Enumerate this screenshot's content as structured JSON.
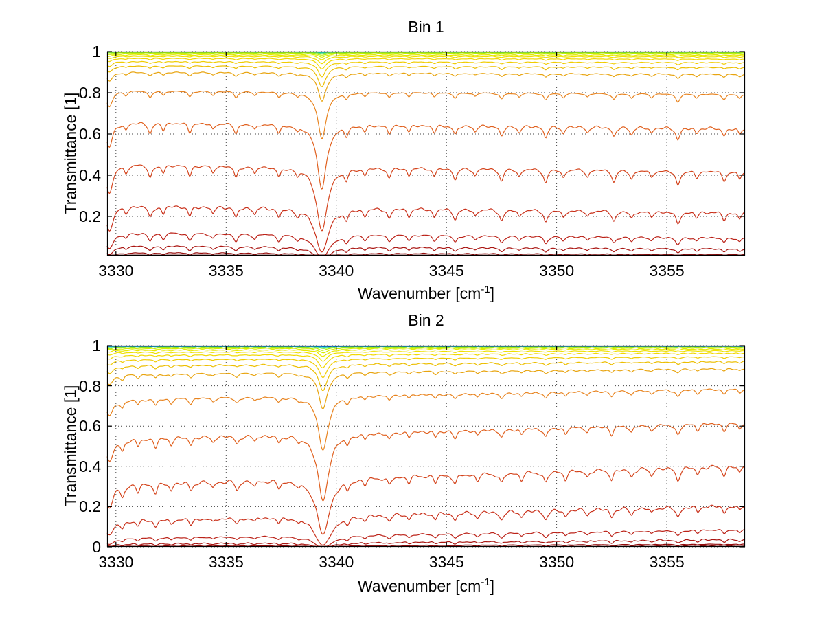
{
  "figure": {
    "background": "#ffffff",
    "kind": "matlab-style stacked spectra figure"
  },
  "chart_data": [
    {
      "type": "line",
      "title": "Bin 1",
      "xlabel": "Wavenumber [cm⁻¹]",
      "xlabel_parts": {
        "pre": "Wavenumber [cm",
        "sup": "-1",
        "post": "]"
      },
      "ylabel": "Transmittance [1]",
      "xlim": [
        3329.6,
        3358.55
      ],
      "ylim": [
        0.01,
        1.0
      ],
      "x_ticks": [
        3330,
        3335,
        3340,
        3345,
        3350,
        3355
      ],
      "x_tick_labels": [
        "3330",
        "3335",
        "3340",
        "3345",
        "3350",
        "3355"
      ],
      "y_ticks": [
        1,
        0.8,
        0.6,
        0.4,
        0.2
      ],
      "y_tick_labels": [
        "1",
        "0.8",
        "0.6",
        "0.4",
        "0.2"
      ],
      "grid": "dotted",
      "legend": "none",
      "x_step": 0.035,
      "draw_order": "asc",
      "model": "T_n(x) = exp(-k_n * A(x)); A(x) = continuum + sum of Lorentzian lines s*w^2/((x-p)^2+w^2)",
      "continuum": {
        "base": 0.105,
        "slope_per_cm": 0.0004,
        "x0": 3330
      },
      "strong_line_cm1": 3339.35,
      "lines_pos_strength_width": [
        [
          3329.7,
          0.05,
          0.18
        ],
        [
          3330.45,
          0.012,
          0.09
        ],
        [
          3331.55,
          0.02,
          0.1
        ],
        [
          3332.15,
          0.013,
          0.09
        ],
        [
          3333.35,
          0.017,
          0.1
        ],
        [
          3334.4,
          0.012,
          0.09
        ],
        [
          3335.45,
          0.019,
          0.1
        ],
        [
          3336.3,
          0.012,
          0.09
        ],
        [
          3337.4,
          0.016,
          0.1
        ],
        [
          3338.25,
          0.011,
          0.09
        ],
        [
          3339.35,
          0.165,
          0.22
        ],
        [
          3340.45,
          0.018,
          0.1
        ],
        [
          3341.3,
          0.011,
          0.09
        ],
        [
          3342.4,
          0.016,
          0.1
        ],
        [
          3343.3,
          0.012,
          0.09
        ],
        [
          3344.45,
          0.013,
          0.09
        ],
        [
          3345.4,
          0.018,
          0.1
        ],
        [
          3346.3,
          0.011,
          0.09
        ],
        [
          3347.5,
          0.02,
          0.1
        ],
        [
          3348.3,
          0.012,
          0.09
        ],
        [
          3349.5,
          0.022,
          0.1
        ],
        [
          3350.3,
          0.013,
          0.09
        ],
        [
          3351.4,
          0.011,
          0.09
        ],
        [
          3352.6,
          0.019,
          0.1
        ],
        [
          3353.4,
          0.014,
          0.09
        ],
        [
          3354.3,
          0.011,
          0.09
        ],
        [
          3355.5,
          0.024,
          0.11
        ],
        [
          3356.35,
          0.011,
          0.09
        ],
        [
          3357.6,
          0.015,
          0.1
        ],
        [
          3358.3,
          0.012,
          0.09
        ]
      ],
      "series_k": [
        0.004,
        0.008,
        0.015,
        0.025,
        0.04,
        0.065,
        0.1,
        0.15,
        0.22,
        0.32,
        0.47,
        0.68,
        1.0,
        2.0,
        4.0,
        7.5,
        13,
        20,
        27,
        35,
        44,
        55
      ],
      "series_colors": [
        "#000089",
        "#0038ff",
        "#00b4e6",
        "#2fd8a7",
        "#7ee82f",
        "#b4f000",
        "#d8ee00",
        "#e8e800",
        "#efe000",
        "#f1d800",
        "#f0cc00",
        "#ecbe00",
        "#e8a40f",
        "#e88420",
        "#e0601e",
        "#d4441c",
        "#c9301a",
        "#bb2218",
        "#aa1612",
        "#960c0c",
        "#800606",
        "#690000"
      ],
      "noise": {
        "mult": 0.022,
        "add": 0.002
      }
    },
    {
      "type": "line",
      "title": "Bin 2",
      "xlabel": "Wavenumber [cm⁻¹]",
      "xlabel_parts": {
        "pre": "Wavenumber [cm",
        "sup": "-1",
        "post": "]"
      },
      "ylabel": "Transmittance [1]",
      "xlim": [
        3329.6,
        3358.55
      ],
      "ylim": [
        0.0,
        1.0
      ],
      "x_ticks": [
        3330,
        3335,
        3340,
        3345,
        3350,
        3355
      ],
      "x_tick_labels": [
        "3330",
        "3335",
        "3340",
        "3345",
        "3350",
        "3355"
      ],
      "y_ticks": [
        1,
        0.8,
        0.6,
        0.4,
        0.2,
        0
      ],
      "y_tick_labels": [
        "1",
        "0.8",
        "0.6",
        "0.4",
        "0.2",
        "0"
      ],
      "grid": "dotted",
      "legend": "none",
      "x_step": 0.035,
      "draw_order": "desc",
      "model": "T_n(x) = exp(-k_n * A(x)); A(x) = continuum + sum of Lorentzian lines s*w^2/((x-p)^2+w^2)",
      "continuum": {
        "base": 0.155,
        "slope_per_cm": -0.0012,
        "x0": 3330
      },
      "strong_line_cm1": 3339.4,
      "lines_pos_strength_width": [
        [
          3329.7,
          0.06,
          0.2
        ],
        [
          3330.3,
          0.025,
          0.1
        ],
        [
          3331.0,
          0.018,
          0.09
        ],
        [
          3331.8,
          0.022,
          0.1
        ],
        [
          3332.5,
          0.016,
          0.09
        ],
        [
          3333.4,
          0.018,
          0.1
        ],
        [
          3334.4,
          0.013,
          0.09
        ],
        [
          3335.5,
          0.019,
          0.1
        ],
        [
          3336.3,
          0.012,
          0.09
        ],
        [
          3337.4,
          0.016,
          0.1
        ],
        [
          3338.3,
          0.012,
          0.09
        ],
        [
          3339.4,
          0.225,
          0.24
        ],
        [
          3340.5,
          0.019,
          0.1
        ],
        [
          3341.3,
          0.012,
          0.09
        ],
        [
          3342.4,
          0.016,
          0.1
        ],
        [
          3343.3,
          0.012,
          0.09
        ],
        [
          3344.5,
          0.014,
          0.09
        ],
        [
          3345.4,
          0.018,
          0.1
        ],
        [
          3346.4,
          0.013,
          0.09
        ],
        [
          3347.5,
          0.02,
          0.1
        ],
        [
          3348.4,
          0.013,
          0.09
        ],
        [
          3349.5,
          0.021,
          0.1
        ],
        [
          3350.4,
          0.014,
          0.09
        ],
        [
          3351.4,
          0.012,
          0.09
        ],
        [
          3352.5,
          0.018,
          0.1
        ],
        [
          3353.4,
          0.014,
          0.09
        ],
        [
          3354.3,
          0.012,
          0.09
        ],
        [
          3355.5,
          0.022,
          0.11
        ],
        [
          3356.4,
          0.012,
          0.09
        ],
        [
          3357.6,
          0.015,
          0.1
        ],
        [
          3358.3,
          0.012,
          0.09
        ]
      ],
      "series_k": [
        0.004,
        0.008,
        0.015,
        0.025,
        0.04,
        0.065,
        0.1,
        0.15,
        0.22,
        0.32,
        0.47,
        0.68,
        1.0,
        2.0,
        4.0,
        7.5,
        13,
        20,
        27,
        35,
        44,
        55
      ],
      "series_colors": [
        "#000089",
        "#0038ff",
        "#00b4e6",
        "#2fd8a7",
        "#7ee82f",
        "#b4f000",
        "#d8ee00",
        "#e8e800",
        "#efe000",
        "#f1d800",
        "#f0cc00",
        "#ecbe00",
        "#e8a40f",
        "#e88420",
        "#e0601e",
        "#d4441c",
        "#c9301a",
        "#bb2218",
        "#aa1612",
        "#960c0c",
        "#800606",
        "#690000"
      ],
      "noise": {
        "mult": 0.03,
        "add": 0.0024
      }
    }
  ],
  "style_colors": {
    "axis": "#000000",
    "grid": "#444444",
    "text": "#000000"
  }
}
